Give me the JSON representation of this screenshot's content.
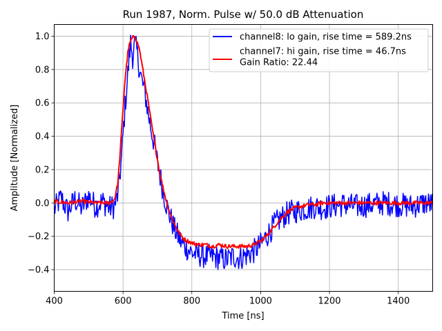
{
  "chart_data": {
    "type": "line",
    "title": "Run 1987, Norm. Pulse w/ 50.0 dB Attenuation",
    "xlabel": "Time [ns]",
    "ylabel": "Amplitude [Normalized]",
    "xlim": [
      400,
      1500
    ],
    "ylim": [
      -0.53,
      1.07
    ],
    "grid": true,
    "legend_position": "upper right",
    "xticks": [
      400,
      600,
      800,
      1000,
      1200,
      1400
    ],
    "xtick_labels": [
      "400",
      "600",
      "800",
      "1000",
      "1200",
      "1400"
    ],
    "yticks": [
      -0.4,
      -0.2,
      0.0,
      0.2,
      0.4,
      0.6,
      0.8,
      1.0
    ],
    "ytick_labels": [
      "−0.4",
      "−0.2",
      "0.0",
      "0.2",
      "0.4",
      "0.6",
      "0.8",
      "1.0"
    ],
    "series": [
      {
        "name": "channel8: lo gain, rise time = 589.2ns",
        "color": "#0000ff",
        "x": [
          400,
          420,
          440,
          460,
          480,
          500,
          520,
          540,
          560,
          575,
          585,
          595,
          605,
          615,
          622,
          628,
          634,
          640,
          648,
          656,
          664,
          672,
          680,
          690,
          700,
          710,
          720,
          730,
          740,
          750,
          760,
          770,
          780,
          790,
          800,
          820,
          840,
          860,
          880,
          900,
          920,
          940,
          960,
          980,
          1000,
          1020,
          1040,
          1060,
          1080,
          1100,
          1120,
          1140,
          1160,
          1180,
          1200,
          1240,
          1280,
          1320,
          1360,
          1400,
          1440,
          1480,
          1500
        ],
        "y": [
          -0.04,
          0.03,
          -0.05,
          0.02,
          -0.03,
          0.04,
          -0.02,
          0.01,
          -0.03,
          -0.02,
          0.05,
          0.25,
          0.55,
          0.8,
          0.96,
          0.88,
          0.95,
          0.91,
          0.8,
          0.72,
          0.66,
          0.55,
          0.46,
          0.36,
          0.24,
          0.14,
          0.04,
          -0.04,
          -0.1,
          -0.16,
          -0.2,
          -0.24,
          -0.26,
          -0.28,
          -0.3,
          -0.31,
          -0.32,
          -0.32,
          -0.33,
          -0.34,
          -0.32,
          -0.33,
          -0.31,
          -0.29,
          -0.25,
          -0.19,
          -0.13,
          -0.09,
          -0.06,
          -0.05,
          -0.04,
          -0.03,
          -0.02,
          -0.03,
          -0.02,
          -0.01,
          -0.02,
          -0.01,
          0.0,
          -0.01,
          -0.02,
          0.0,
          -0.01
        ]
      },
      {
        "name": "channel7: hi gain, rise time = 46.7ns\nGain Ratio: 22.44",
        "color": "#ff0000",
        "x": [
          400,
          440,
          480,
          520,
          560,
          575,
          585,
          595,
          605,
          615,
          622,
          628,
          634,
          640,
          648,
          656,
          664,
          672,
          680,
          690,
          700,
          710,
          720,
          730,
          740,
          750,
          760,
          770,
          780,
          790,
          800,
          820,
          840,
          860,
          880,
          900,
          920,
          940,
          960,
          980,
          1000,
          1020,
          1040,
          1060,
          1080,
          1100,
          1120,
          1140,
          1160,
          1180,
          1200,
          1240,
          1280,
          1320,
          1360,
          1400,
          1440,
          1480,
          1500
        ],
        "y": [
          0.01,
          0.0,
          0.01,
          0.0,
          0.0,
          0.02,
          0.12,
          0.4,
          0.72,
          0.92,
          0.97,
          0.99,
          1.0,
          0.97,
          0.92,
          0.82,
          0.72,
          0.62,
          0.51,
          0.38,
          0.26,
          0.15,
          0.06,
          -0.02,
          -0.08,
          -0.13,
          -0.17,
          -0.2,
          -0.22,
          -0.23,
          -0.24,
          -0.25,
          -0.25,
          -0.26,
          -0.25,
          -0.26,
          -0.26,
          -0.26,
          -0.26,
          -0.25,
          -0.23,
          -0.19,
          -0.14,
          -0.09,
          -0.05,
          -0.03,
          -0.02,
          -0.01,
          -0.01,
          0.0,
          0.0,
          0.0,
          0.0,
          0.0,
          0.0,
          0.0,
          0.0,
          0.0,
          0.0
        ]
      }
    ]
  }
}
